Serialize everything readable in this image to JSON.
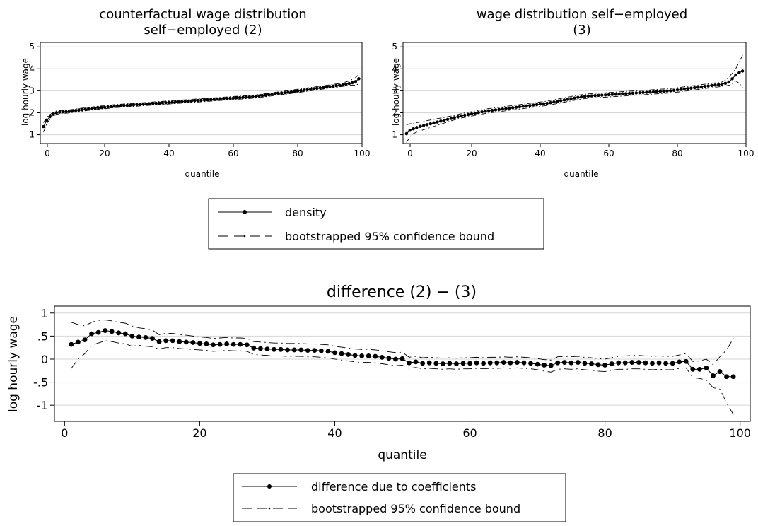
{
  "chart_data": [
    {
      "type": "line",
      "title": "counterfactual wage distribution",
      "subtitle": "self−employed (2)",
      "xlabel": "quantile",
      "ylabel": "log hourly wage",
      "xlim": [
        0,
        100
      ],
      "ylim": [
        0.6,
        5.2
      ],
      "xticks": [
        "20",
        "40",
        "60",
        "80",
        "100"
      ],
      "xtick_values": [
        20,
        40,
        60,
        80,
        100
      ],
      "yticks": [
        "1",
        "2",
        "3",
        "4",
        "5"
      ],
      "ytick_values": [
        1,
        2,
        3,
        4,
        5
      ],
      "grid": true,
      "x_start": 1,
      "series": [
        {
          "name": "density",
          "style": "solid-dots",
          "values": [
            1.37,
            1.65,
            1.82,
            1.93,
            2.0,
            2.03,
            2.04,
            2.05,
            2.06,
            2.08,
            2.1,
            2.12,
            2.14,
            2.16,
            2.18,
            2.19,
            2.21,
            2.23,
            2.24,
            2.25,
            2.27,
            2.28,
            2.3,
            2.31,
            2.32,
            2.33,
            2.34,
            2.35,
            2.36,
            2.37,
            2.38,
            2.39,
            2.4,
            2.41,
            2.42,
            2.43,
            2.44,
            2.45,
            2.46,
            2.47,
            2.48,
            2.49,
            2.5,
            2.51,
            2.52,
            2.53,
            2.54,
            2.55,
            2.56,
            2.57,
            2.58,
            2.59,
            2.6,
            2.61,
            2.62,
            2.63,
            2.64,
            2.65,
            2.66,
            2.67,
            2.68,
            2.69,
            2.7,
            2.71,
            2.72,
            2.73,
            2.74,
            2.76,
            2.78,
            2.8,
            2.82,
            2.84,
            2.86,
            2.88,
            2.9,
            2.91,
            2.93,
            2.95,
            2.97,
            2.99,
            3.01,
            3.03,
            3.05,
            3.07,
            3.09,
            3.11,
            3.13,
            3.15,
            3.17,
            3.19,
            3.21,
            3.23,
            3.25,
            3.27,
            3.3,
            3.33,
            3.37,
            3.42,
            3.55
          ]
        },
        {
          "name": "bootstrapped 95% confidence bound",
          "style": "dashed",
          "values": [
            1.55,
            1.78,
            1.92,
            2.01,
            2.08,
            2.1,
            2.11,
            2.12,
            2.13,
            2.15,
            2.17,
            2.19,
            2.21,
            2.23,
            2.25,
            2.26,
            2.28,
            2.3,
            2.31,
            2.32,
            2.34,
            2.35,
            2.37,
            2.38,
            2.39,
            2.4,
            2.41,
            2.42,
            2.43,
            2.44,
            2.45,
            2.46,
            2.47,
            2.48,
            2.49,
            2.5,
            2.51,
            2.52,
            2.53,
            2.54,
            2.55,
            2.56,
            2.57,
            2.58,
            2.59,
            2.6,
            2.61,
            2.62,
            2.63,
            2.64,
            2.65,
            2.66,
            2.67,
            2.68,
            2.69,
            2.7,
            2.71,
            2.72,
            2.73,
            2.74,
            2.75,
            2.76,
            2.77,
            2.78,
            2.79,
            2.8,
            2.81,
            2.83,
            2.85,
            2.87,
            2.89,
            2.91,
            2.93,
            2.95,
            2.97,
            2.99,
            3.01,
            3.03,
            3.05,
            3.07,
            3.09,
            3.11,
            3.13,
            3.15,
            3.17,
            3.19,
            3.21,
            3.23,
            3.25,
            3.27,
            3.29,
            3.31,
            3.33,
            3.36,
            3.4,
            3.45,
            3.52,
            3.6,
            3.75
          ]
        },
        {
          "name": "bootstrapped 95% confidence bound",
          "style": "dashed",
          "values": [
            1.12,
            1.5,
            1.7,
            1.84,
            1.92,
            1.96,
            1.97,
            1.98,
            1.99,
            2.01,
            2.03,
            2.05,
            2.07,
            2.09,
            2.11,
            2.12,
            2.14,
            2.16,
            2.17,
            2.18,
            2.2,
            2.21,
            2.23,
            2.24,
            2.25,
            2.26,
            2.27,
            2.28,
            2.29,
            2.3,
            2.31,
            2.32,
            2.33,
            2.34,
            2.35,
            2.36,
            2.37,
            2.38,
            2.39,
            2.4,
            2.41,
            2.42,
            2.43,
            2.44,
            2.45,
            2.46,
            2.47,
            2.48,
            2.49,
            2.5,
            2.51,
            2.52,
            2.53,
            2.54,
            2.55,
            2.56,
            2.57,
            2.58,
            2.59,
            2.6,
            2.61,
            2.62,
            2.63,
            2.64,
            2.65,
            2.66,
            2.67,
            2.69,
            2.71,
            2.73,
            2.75,
            2.77,
            2.79,
            2.81,
            2.83,
            2.84,
            2.86,
            2.88,
            2.9,
            2.92,
            2.94,
            2.96,
            2.98,
            3.0,
            3.02,
            3.04,
            3.06,
            3.08,
            3.1,
            3.12,
            3.14,
            3.16,
            3.18,
            3.2,
            3.22,
            3.25,
            3.26,
            3.25,
            3.32
          ]
        }
      ]
    },
    {
      "type": "line",
      "title": "wage distribution self−employed",
      "subtitle": "(3)",
      "xlabel": "quantile",
      "ylabel": "log hourly wage",
      "xlim": [
        0,
        100
      ],
      "ylim": [
        0.6,
        5.2
      ],
      "xticks": [
        "20",
        "40",
        "60",
        "80",
        "100"
      ],
      "xtick_values": [
        20,
        40,
        60,
        80,
        100
      ],
      "yticks": [
        "1",
        "2",
        "3",
        "4",
        "5"
      ],
      "ytick_values": [
        1,
        2,
        3,
        4,
        5
      ],
      "grid": true,
      "x_start": 1,
      "series": [
        {
          "name": "density",
          "style": "solid-dots",
          "values": [
            1.05,
            1.2,
            1.27,
            1.33,
            1.38,
            1.42,
            1.46,
            1.5,
            1.54,
            1.58,
            1.62,
            1.66,
            1.7,
            1.74,
            1.78,
            1.82,
            1.86,
            1.89,
            1.92,
            1.95,
            1.98,
            2.01,
            2.04,
            2.07,
            2.09,
            2.11,
            2.13,
            2.15,
            2.17,
            2.19,
            2.21,
            2.23,
            2.25,
            2.27,
            2.29,
            2.31,
            2.33,
            2.35,
            2.37,
            2.39,
            2.41,
            2.43,
            2.46,
            2.49,
            2.52,
            2.55,
            2.58,
            2.61,
            2.64,
            2.67,
            2.7,
            2.72,
            2.74,
            2.76,
            2.77,
            2.78,
            2.79,
            2.8,
            2.81,
            2.82,
            2.83,
            2.84,
            2.85,
            2.86,
            2.87,
            2.88,
            2.89,
            2.9,
            2.91,
            2.92,
            2.93,
            2.94,
            2.95,
            2.96,
            2.97,
            2.98,
            2.99,
            3.0,
            3.02,
            3.04,
            3.06,
            3.08,
            3.1,
            3.12,
            3.14,
            3.16,
            3.18,
            3.2,
            3.22,
            3.24,
            3.26,
            3.28,
            3.3,
            3.34,
            3.4,
            3.55,
            3.72,
            3.82,
            3.9
          ]
        },
        {
          "name": "bootstrapped 95% confidence bound",
          "style": "dashed",
          "values": [
            1.45,
            1.5,
            1.52,
            1.55,
            1.58,
            1.61,
            1.64,
            1.67,
            1.7,
            1.73,
            1.76,
            1.79,
            1.82,
            1.85,
            1.88,
            1.92,
            1.96,
            1.99,
            2.02,
            2.05,
            2.08,
            2.11,
            2.14,
            2.17,
            2.19,
            2.21,
            2.23,
            2.25,
            2.27,
            2.29,
            2.31,
            2.33,
            2.35,
            2.37,
            2.39,
            2.41,
            2.43,
            2.45,
            2.47,
            2.49,
            2.51,
            2.53,
            2.56,
            2.59,
            2.62,
            2.65,
            2.68,
            2.71,
            2.74,
            2.77,
            2.8,
            2.82,
            2.84,
            2.86,
            2.87,
            2.88,
            2.89,
            2.9,
            2.91,
            2.92,
            2.93,
            2.94,
            2.95,
            2.96,
            2.97,
            2.98,
            2.99,
            3.0,
            3.01,
            3.02,
            3.03,
            3.04,
            3.05,
            3.06,
            3.07,
            3.08,
            3.09,
            3.1,
            3.12,
            3.14,
            3.16,
            3.18,
            3.2,
            3.22,
            3.24,
            3.26,
            3.28,
            3.3,
            3.32,
            3.34,
            3.36,
            3.38,
            3.4,
            3.48,
            3.62,
            3.8,
            4.0,
            4.3,
            4.62
          ]
        },
        {
          "name": "bootstrapped 95% confidence bound",
          "style": "dashed",
          "values": [
            0.65,
            0.9,
            1.05,
            1.12,
            1.18,
            1.23,
            1.28,
            1.33,
            1.38,
            1.43,
            1.48,
            1.53,
            1.58,
            1.63,
            1.68,
            1.72,
            1.76,
            1.79,
            1.82,
            1.85,
            1.88,
            1.91,
            1.94,
            1.97,
            1.99,
            2.01,
            2.03,
            2.05,
            2.07,
            2.09,
            2.11,
            2.13,
            2.15,
            2.17,
            2.19,
            2.21,
            2.23,
            2.25,
            2.27,
            2.29,
            2.31,
            2.33,
            2.36,
            2.39,
            2.42,
            2.45,
            2.48,
            2.51,
            2.54,
            2.57,
            2.6,
            2.62,
            2.64,
            2.66,
            2.67,
            2.68,
            2.69,
            2.7,
            2.71,
            2.72,
            2.73,
            2.74,
            2.75,
            2.76,
            2.77,
            2.78,
            2.79,
            2.8,
            2.81,
            2.82,
            2.83,
            2.84,
            2.85,
            2.86,
            2.87,
            2.88,
            2.89,
            2.9,
            2.92,
            2.94,
            2.96,
            2.98,
            3.0,
            3.02,
            3.04,
            3.06,
            3.08,
            3.1,
            3.12,
            3.14,
            3.16,
            3.18,
            3.2,
            3.22,
            3.25,
            3.3,
            3.45,
            3.35,
            3.15
          ]
        }
      ]
    },
    {
      "type": "line",
      "title": "difference (2) − (3)",
      "xlabel": "quantile",
      "ylabel": "log hourly wage",
      "xlim": [
        -1.5,
        101.5
      ],
      "ylim": [
        -1.35,
        1.15
      ],
      "xticks": [
        "0",
        "20",
        "40",
        "60",
        "80",
        "100"
      ],
      "xtick_values": [
        0,
        20,
        40,
        60,
        80,
        100
      ],
      "yticks": [
        "1",
        ".5",
        "0",
        "-.5",
        "-1"
      ],
      "ytick_values": [
        1,
        0.5,
        0,
        -0.5,
        -1
      ],
      "grid": true,
      "x_start": 1,
      "series": [
        {
          "name": "difference due to coefficients",
          "style": "solid-dots",
          "values": [
            0.32,
            0.37,
            0.42,
            0.55,
            0.58,
            0.62,
            0.6,
            0.57,
            0.55,
            0.5,
            0.48,
            0.47,
            0.45,
            0.38,
            0.4,
            0.4,
            0.38,
            0.37,
            0.36,
            0.34,
            0.33,
            0.31,
            0.32,
            0.33,
            0.32,
            0.32,
            0.31,
            0.24,
            0.23,
            0.22,
            0.21,
            0.21,
            0.2,
            0.2,
            0.2,
            0.19,
            0.19,
            0.18,
            0.17,
            0.14,
            0.12,
            0.1,
            0.08,
            0.07,
            0.07,
            0.06,
            0.04,
            0.02,
            0.0,
            0.01,
            -0.08,
            -0.06,
            -0.09,
            -0.08,
            -0.09,
            -0.1,
            -0.09,
            -0.1,
            -0.09,
            -0.09,
            -0.08,
            -0.09,
            -0.08,
            -0.08,
            -0.07,
            -0.08,
            -0.07,
            -0.08,
            -0.09,
            -0.11,
            -0.13,
            -0.14,
            -0.08,
            -0.07,
            -0.08,
            -0.07,
            -0.09,
            -0.1,
            -0.12,
            -0.13,
            -0.1,
            -0.08,
            -0.08,
            -0.07,
            -0.07,
            -0.08,
            -0.09,
            -0.08,
            -0.09,
            -0.09,
            -0.06,
            -0.05,
            -0.22,
            -0.22,
            -0.19,
            -0.36,
            -0.27,
            -0.38,
            -0.38
          ]
        },
        {
          "name": "bootstrapped 95% confidence bound",
          "style": "dashed",
          "values": [
            0.8,
            0.75,
            0.72,
            0.8,
            0.84,
            0.85,
            0.83,
            0.8,
            0.78,
            0.72,
            0.68,
            0.66,
            0.63,
            0.53,
            0.56,
            0.56,
            0.53,
            0.52,
            0.5,
            0.48,
            0.47,
            0.45,
            0.46,
            0.47,
            0.46,
            0.46,
            0.45,
            0.38,
            0.37,
            0.36,
            0.35,
            0.35,
            0.34,
            0.34,
            0.34,
            0.33,
            0.33,
            0.32,
            0.31,
            0.28,
            0.26,
            0.24,
            0.22,
            0.21,
            0.21,
            0.2,
            0.18,
            0.16,
            0.14,
            0.15,
            0.04,
            0.06,
            0.03,
            0.04,
            0.03,
            0.02,
            0.03,
            0.02,
            0.03,
            0.03,
            0.04,
            0.03,
            0.04,
            0.04,
            0.05,
            0.04,
            0.05,
            0.04,
            0.03,
            0.01,
            -0.01,
            -0.02,
            0.05,
            0.06,
            0.05,
            0.06,
            0.04,
            0.03,
            0.01,
            0.0,
            0.03,
            0.06,
            0.07,
            0.08,
            0.08,
            0.07,
            0.06,
            0.07,
            0.06,
            0.06,
            0.09,
            0.12,
            -0.05,
            -0.04,
            0.0,
            -0.12,
            0.05,
            0.2,
            0.45
          ]
        },
        {
          "name": "bootstrapped 95% confidence bound",
          "style": "dashed",
          "values": [
            -0.2,
            0.0,
            0.12,
            0.3,
            0.35,
            0.4,
            0.38,
            0.35,
            0.33,
            0.28,
            0.3,
            0.28,
            0.27,
            0.22,
            0.25,
            0.25,
            0.23,
            0.22,
            0.21,
            0.2,
            0.19,
            0.17,
            0.18,
            0.19,
            0.18,
            0.18,
            0.17,
            0.1,
            0.09,
            0.08,
            0.07,
            0.07,
            0.06,
            0.06,
            0.06,
            0.05,
            0.05,
            0.04,
            0.03,
            0.0,
            -0.02,
            -0.04,
            -0.06,
            -0.07,
            -0.07,
            -0.08,
            -0.1,
            -0.12,
            -0.14,
            -0.13,
            -0.2,
            -0.18,
            -0.21,
            -0.2,
            -0.21,
            -0.22,
            -0.21,
            -0.22,
            -0.21,
            -0.21,
            -0.2,
            -0.21,
            -0.2,
            -0.2,
            -0.19,
            -0.2,
            -0.19,
            -0.2,
            -0.21,
            -0.23,
            -0.26,
            -0.28,
            -0.22,
            -0.21,
            -0.22,
            -0.21,
            -0.23,
            -0.24,
            -0.26,
            -0.27,
            -0.24,
            -0.22,
            -0.22,
            -0.21,
            -0.21,
            -0.22,
            -0.23,
            -0.22,
            -0.23,
            -0.23,
            -0.2,
            -0.19,
            -0.4,
            -0.42,
            -0.45,
            -0.62,
            -0.65,
            -0.95,
            -1.2
          ]
        }
      ]
    }
  ],
  "legend_top": {
    "items": [
      {
        "label": "density",
        "style": "solid-dots"
      },
      {
        "label": "bootstrapped 95% confidence bound",
        "style": "dashed"
      }
    ]
  },
  "legend_bottom": {
    "items": [
      {
        "label": "difference due to coefficients",
        "style": "solid-dots"
      },
      {
        "label": "bootstrapped 95% confidence bound",
        "style": "dashed"
      }
    ]
  }
}
